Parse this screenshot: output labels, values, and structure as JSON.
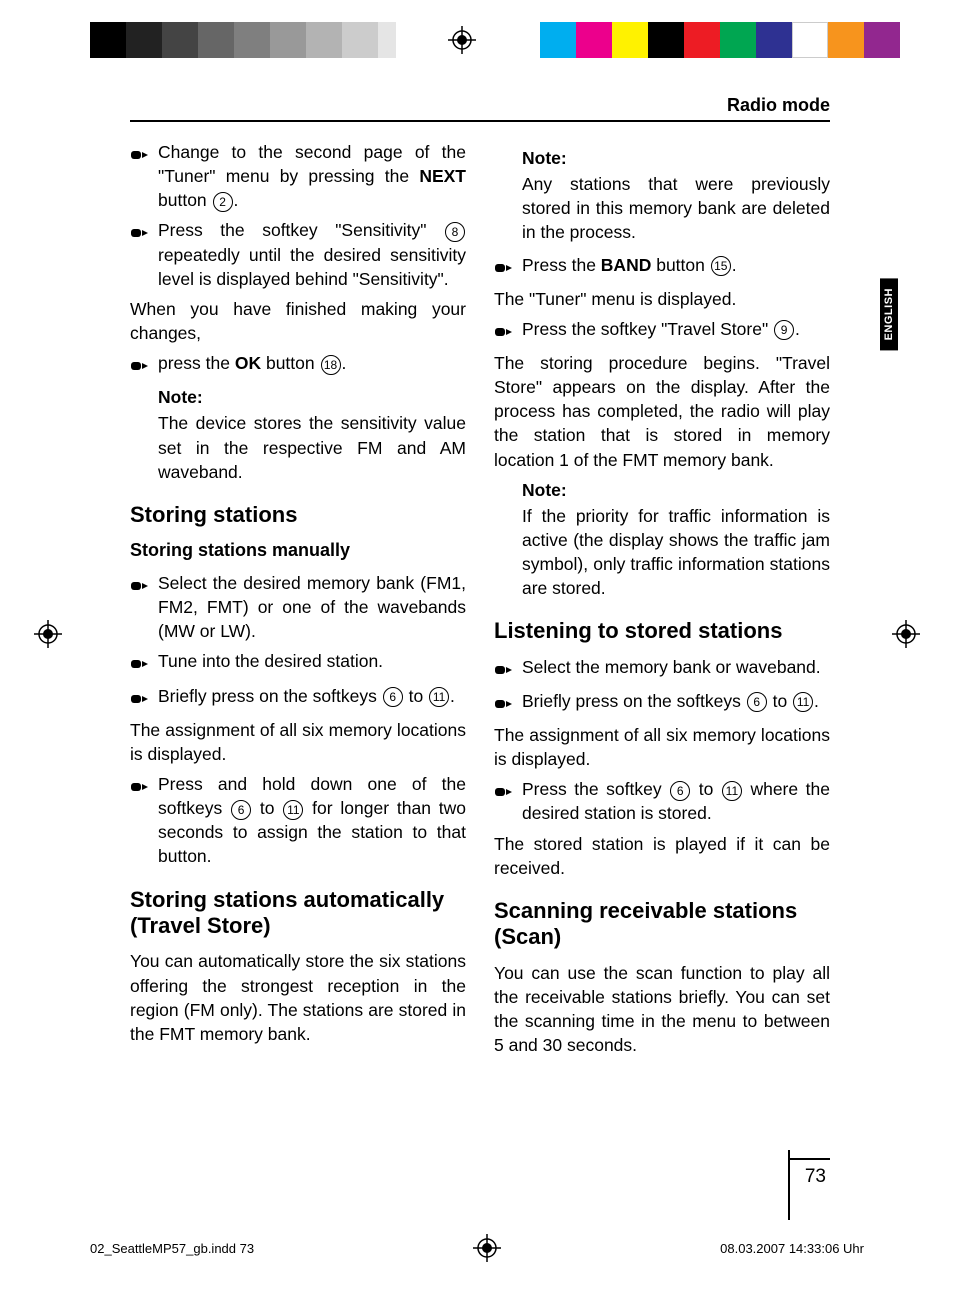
{
  "header": {
    "section_title": "Radio mode"
  },
  "side_tab": "ENGLISH",
  "page_number": "73",
  "footer": {
    "left": "02_SeattleMP57_gb.indd   73",
    "right": "08.03.2007   14:33:06 Uhr"
  },
  "top_colors_left": [
    "#000000",
    "#222222",
    "#444444",
    "#666666",
    "#7f7f7f",
    "#999999",
    "#b3b3b3",
    "#cccccc",
    "#e5e5e5",
    "#ffffff"
  ],
  "top_colors_right": [
    "#00aeef",
    "#ec008c",
    "#fff200",
    "#000000",
    "#ed1c24",
    "#00a651",
    "#2e3192",
    "#ffffff",
    "#f7941d",
    "#92278f"
  ],
  "left_col": {
    "b1": "Change to the second page of the \"Tuner\" menu by pressing the ",
    "b1_bold": "NEXT",
    "b1_after": " button ",
    "b1_num": "2",
    "b2_a": "Press the softkey \"Sensitivity\" ",
    "b2_num": "8",
    "b2_b": " repeatedly until the desired sensitivity level is displayed behind \"Sensitivity\".",
    "p1": "When you have finished making your changes,",
    "b3_a": "press the ",
    "b3_bold": "OK",
    "b3_b": " button ",
    "b3_num": "18",
    "note1_label": "Note:",
    "note1_text": "The device stores the sensitivity value set in the respective FM and AM waveband.",
    "h2a": "Storing stations",
    "h3a": "Storing stations manually",
    "b4": "Select the desired memory bank (FM1, FM2, FMT) or one of the wavebands (MW or LW).",
    "b5": "Tune into the desired station.",
    "b6_a": "Briefly press on the softkeys ",
    "b6_n1": "6",
    "b6_mid": " to ",
    "b6_n2": "11",
    "p2": "The assignment of all six memory locations is displayed.",
    "b7_a": "Press and hold down one of the softkeys ",
    "b7_n1": "6",
    "b7_mid": " to ",
    "b7_n2": "11",
    "b7_b": " for longer than two seconds to assign the station to that button.",
    "h2b": "Storing stations automatically (Travel Store)",
    "p3": "You can automatically store the six stations offering the strongest reception in the region (FM only). The stations are stored in the FMT memory bank."
  },
  "right_col": {
    "note1_label": "Note:",
    "note1_text": "Any stations that were previously stored in this memory bank are deleted in the process.",
    "b1_a": "Press the ",
    "b1_bold": "BAND",
    "b1_b": " button ",
    "b1_num": "15",
    "p1": "The \"Tuner\" menu is displayed.",
    "b2_a": "Press the softkey \"Travel Store\" ",
    "b2_num": "9",
    "p2": "The storing procedure begins. \"Travel Store\" appears on the display. After the process has completed, the radio will play the station that is stored in memory location 1 of the FMT memory bank.",
    "note2_label": "Note:",
    "note2_text": "If the priority for traffic information is active (the display shows the traffic jam symbol), only traffic information stations are stored.",
    "h2a": "Listening to stored stations",
    "b3": "Select the memory bank or waveband.",
    "b4_a": "Briefly press on the softkeys ",
    "b4_n1": "6",
    "b4_mid": " to ",
    "b4_n2": "11",
    "p3": "The assignment of all six memory locations is displayed.",
    "b5_a": "Press the softkey ",
    "b5_n1": "6",
    "b5_mid": " to ",
    "b5_n2": "11",
    "b5_b": " where the desired station is stored.",
    "p4": "The stored station is played if it can be received.",
    "h2b": "Scanning receivable stations (Scan)",
    "p5": "You can use the scan function to play all the receivable stations briefly. You can set the scanning time in the menu to between 5 and 30 seconds."
  }
}
